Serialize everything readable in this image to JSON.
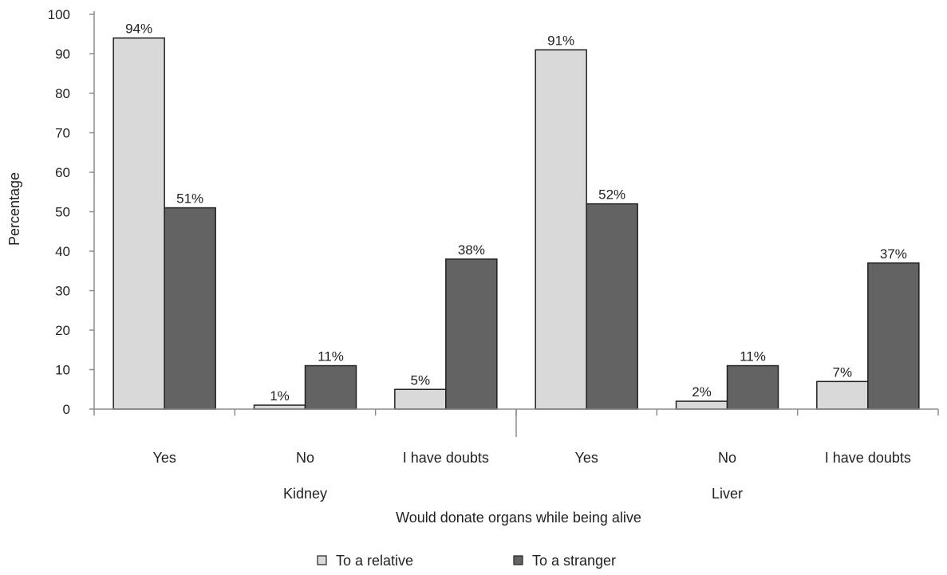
{
  "chart_data": {
    "type": "bar",
    "ylabel": "Percentage",
    "xlabel": "Would donate organs while being alive",
    "ylim": [
      0,
      100
    ],
    "yticks": [
      0,
      10,
      20,
      30,
      40,
      50,
      60,
      70,
      80,
      90,
      100
    ],
    "groups": [
      {
        "name": "Kidney",
        "categories": [
          "Yes",
          "No",
          "I have doubts"
        ]
      },
      {
        "name": "Liver",
        "categories": [
          "Yes",
          "No",
          "I have doubts"
        ]
      }
    ],
    "series": [
      {
        "name": "To a relative",
        "color": "#d9d9d9",
        "values": [
          94,
          1,
          5,
          91,
          2,
          7
        ],
        "labels": [
          "94%",
          "1%",
          "5%",
          "91%",
          "2%",
          "7%"
        ]
      },
      {
        "name": "To a stranger",
        "color": "#636363",
        "values": [
          51,
          11,
          38,
          52,
          11,
          37
        ],
        "labels": [
          "51%",
          "11%",
          "38%",
          "52%",
          "11%",
          "37%"
        ]
      }
    ],
    "legend_position": "bottom",
    "grid": false
  }
}
